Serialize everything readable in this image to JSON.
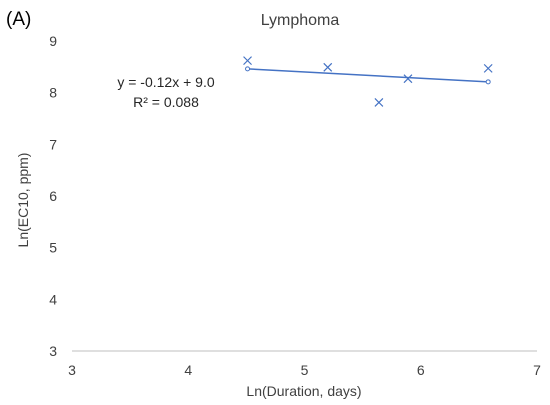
{
  "panel_label": "(A)",
  "chart_data": {
    "type": "scatter",
    "title": "Lymphoma",
    "xlabel": "Ln(Duration, days)",
    "ylabel": "Ln(EC10, ppm)",
    "xlim": [
      3,
      7
    ],
    "ylim": [
      3,
      9
    ],
    "x_ticks": [
      3,
      4,
      5,
      6,
      7
    ],
    "y_ticks": [
      3,
      4,
      5,
      6,
      7,
      8,
      9
    ],
    "grid": false,
    "points": {
      "marker": "x",
      "color": "#4472C4",
      "x": [
        4.51,
        5.2,
        5.64,
        5.89,
        6.58
      ],
      "y": [
        8.62,
        8.49,
        7.81,
        8.27,
        8.47
      ]
    },
    "trendline": {
      "color": "#4472C4",
      "x": [
        4.51,
        6.58
      ],
      "y": [
        8.46,
        8.21
      ]
    },
    "annotations": {
      "equation": "y = -0.12x + 9.0",
      "r_squared": "R² = 0.088"
    }
  }
}
